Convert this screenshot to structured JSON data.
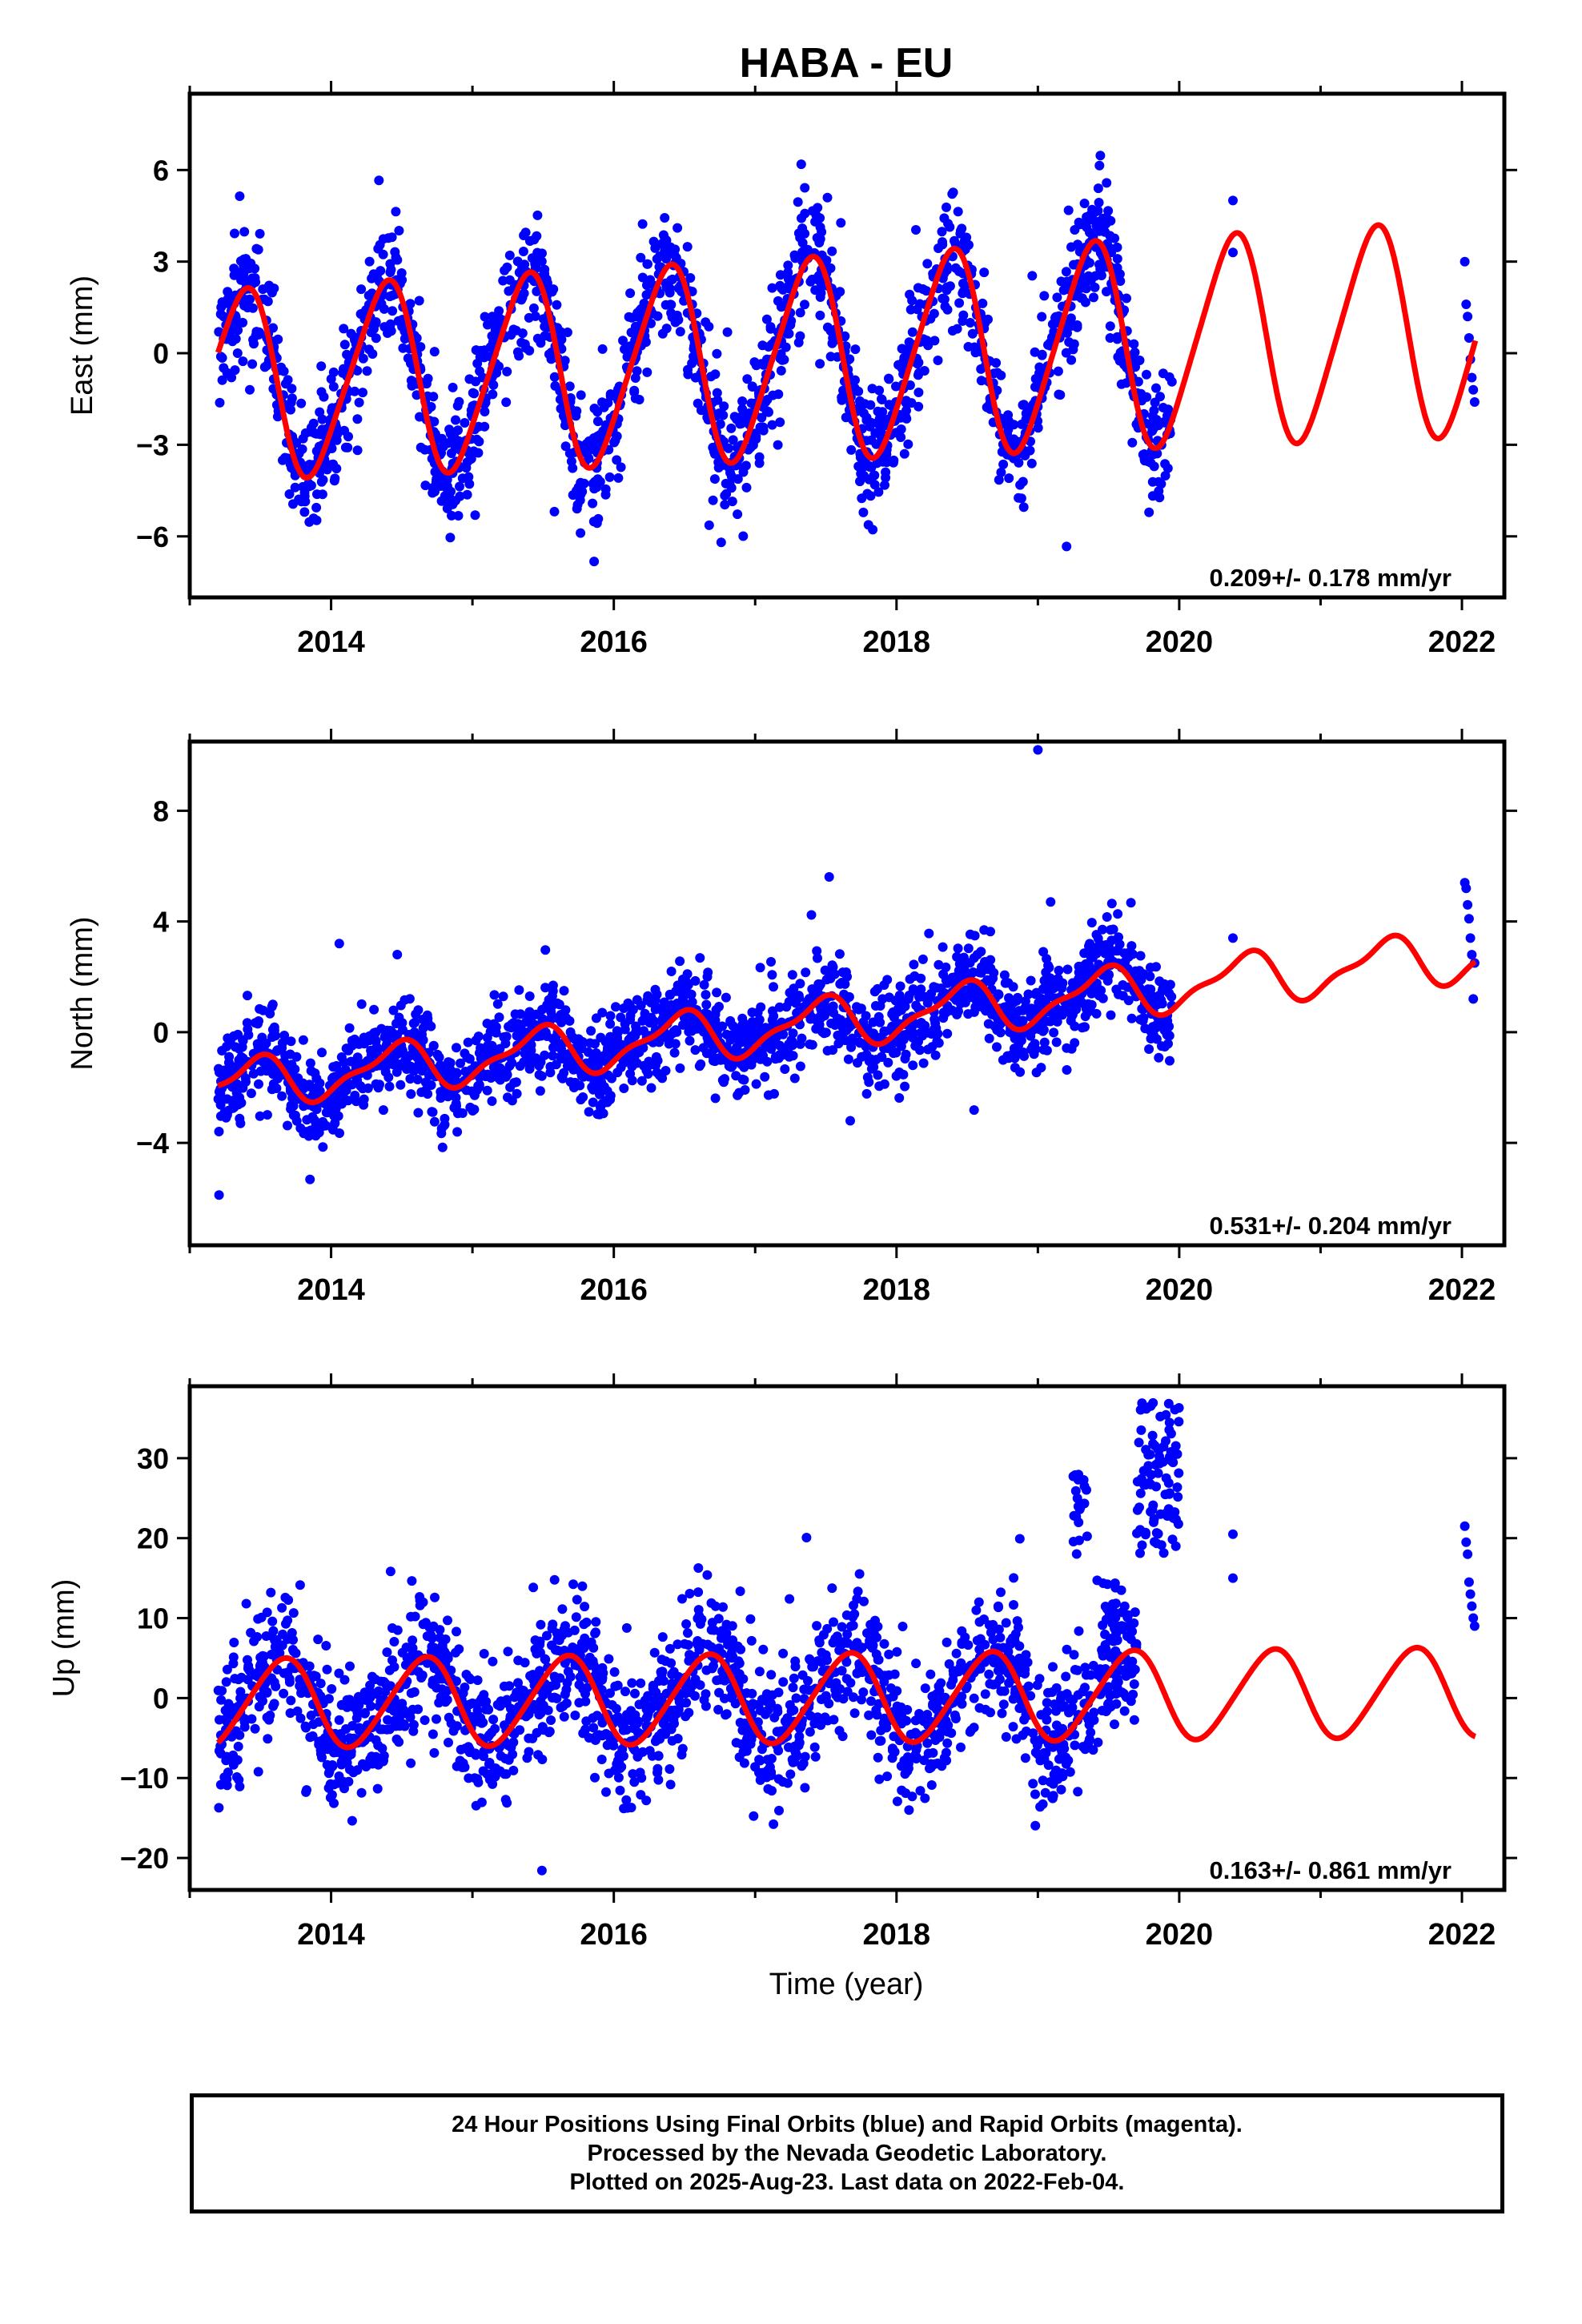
{
  "chart_data": {
    "type": "scatter",
    "title": "HABA - EU",
    "xlabel": "Time (year)",
    "xlim": [
      2013.0,
      2022.3
    ],
    "xticks": [
      2014,
      2016,
      2018,
      2020,
      2022
    ],
    "colors": {
      "data": "#0000ff",
      "model": "#ff0000",
      "frame": "#000000"
    },
    "panels": [
      {
        "name": "east",
        "ylabel": "East (mm)",
        "ylim": [
          -8.0,
          8.5
        ],
        "yticks": [
          6,
          3,
          0,
          -3,
          -6
        ],
        "rate_text": "0.209+/- 0.178 mm/yr",
        "model": {
          "trend": 0.209,
          "ref_year": 2017.5,
          "offset": -0.15,
          "amp": 3.0,
          "amp_growth": 0.1,
          "phase_year": 2013.37,
          "period": 1.0,
          "semi_amp": 0.45
        },
        "points": {
          "start": 2013.2,
          "end": 2019.95,
          "count": 1900,
          "noise": 1.0,
          "outlier_rate": 0.02,
          "late": [
            2022.02,
            2022.09
          ],
          "late_values": [
            3.0,
            1.6,
            1.2,
            0.5,
            -0.2,
            -0.8,
            -1.2,
            -1.6
          ],
          "post": [
            [
              2020.38,
              5.0
            ],
            [
              2020.38,
              3.3
            ]
          ]
        }
      },
      {
        "name": "north",
        "ylabel": "North (mm)",
        "ylim": [
          -7.7,
          10.5
        ],
        "yticks": [
          8,
          4,
          0,
          -4
        ],
        "rate_text": "0.531+/- 0.204 mm/yr",
        "model": {
          "trend": 0.531,
          "ref_year": 2017.5,
          "offset": 0.35,
          "amp": 0.8,
          "amp_growth": 0.05,
          "phase_year": 2013.45,
          "period": 1.0,
          "semi_amp": 0.3
        },
        "points": {
          "start": 2013.2,
          "end": 2019.95,
          "count": 1900,
          "noise": 0.85,
          "outlier_rate": 0.02,
          "late": [
            2022.02,
            2022.09
          ],
          "late_values": [
            5.4,
            5.2,
            4.6,
            4.1,
            3.4,
            2.8,
            1.2,
            2.5
          ],
          "post": [
            [
              2020.38,
              3.4
            ],
            [
              2019.0,
              10.2
            ]
          ]
        }
      },
      {
        "name": "up",
        "ylabel": "Up (mm)",
        "ylim": [
          -24.0,
          39.0
        ],
        "yticks": [
          30,
          20,
          10,
          0,
          -10,
          -20
        ],
        "rate_text": "0.163+/- 0.861 mm/yr",
        "model": {
          "trend": 0.163,
          "ref_year": 2017.5,
          "offset": 0.0,
          "amp": 5.5,
          "amp_growth": 0.0,
          "phase_year": 2013.65,
          "period": 1.0,
          "semi_amp": 0.6
        },
        "points": {
          "start": 2013.2,
          "end": 2019.7,
          "count": 1800,
          "noise": 4.2,
          "outlier_rate": 0.02,
          "late": [
            2022.02,
            2022.09
          ],
          "late_values": [
            21.5,
            19.5,
            18.0,
            14.5,
            13.0,
            11.5,
            10.0,
            9.0
          ],
          "post": [
            [
              2020.38,
              20.5
            ],
            [
              2020.38,
              15.0
            ]
          ],
          "clusters": [
            [
              2019.25,
              2019.35,
              18,
              28,
              20
            ],
            [
              2019.45,
              2019.55,
              5,
              15,
              18
            ],
            [
              2019.7,
              2020.0,
              18,
              37,
              90
            ]
          ]
        }
      }
    ]
  },
  "footer": {
    "line1": "24 Hour Positions Using Final Orbits (blue) and Rapid Orbits (magenta).",
    "line2": "Processed by the Nevada Geodetic Laboratory.",
    "line3": "Plotted on 2025-Aug-23. Last data on 2022-Feb-04."
  }
}
